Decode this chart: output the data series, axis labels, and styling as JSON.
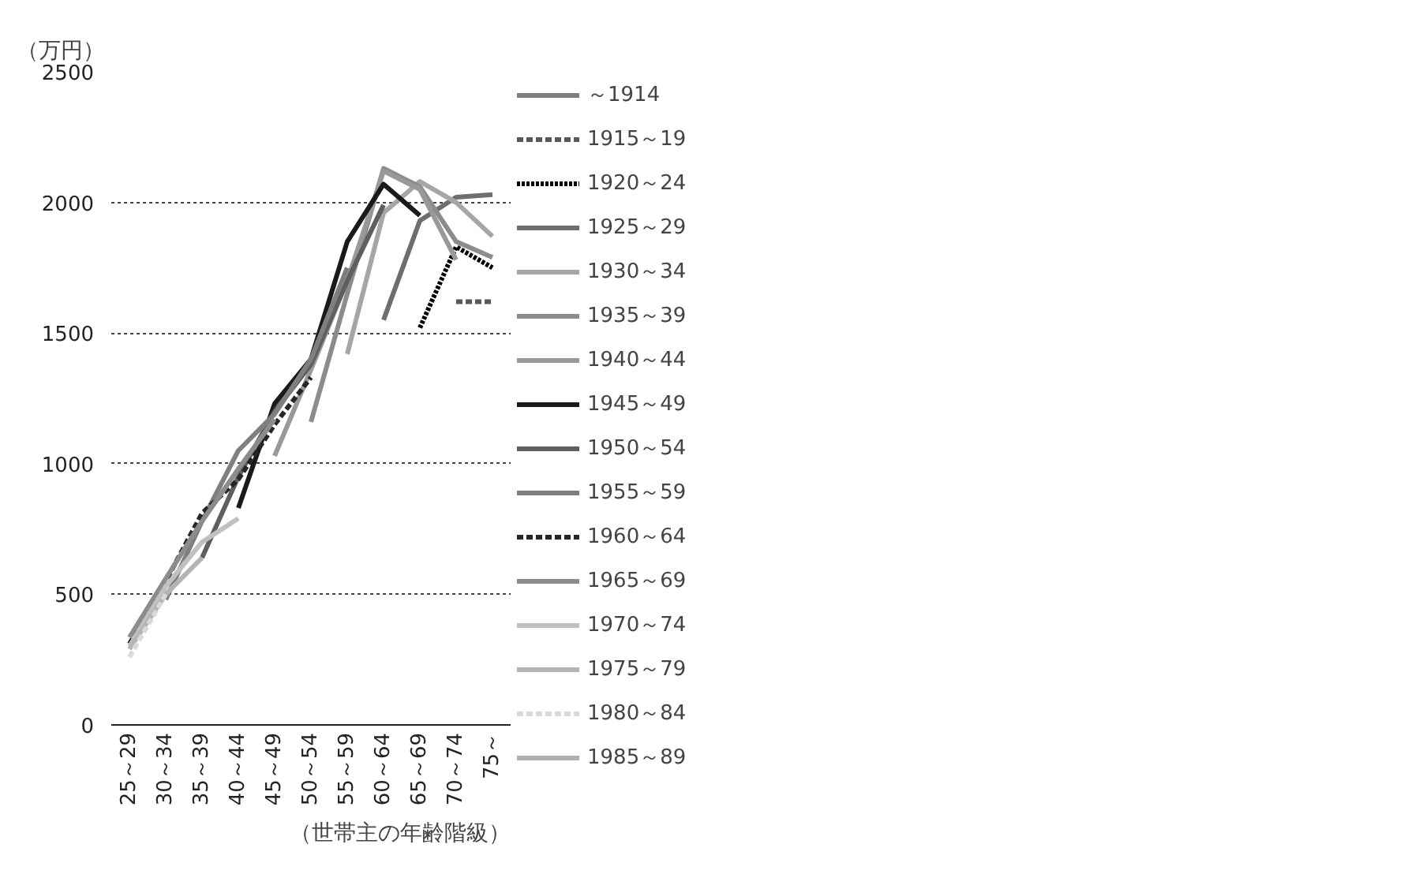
{
  "chart_data": {
    "type": "line",
    "ylabel": "（万円）",
    "xlabel": "（世帯主の年齢階級）",
    "categories": [
      "25～29",
      "30～34",
      "35～39",
      "40～44",
      "45～49",
      "50～54",
      "55～59",
      "60～64",
      "65～69",
      "70～74",
      "75～"
    ],
    "ylim": [
      0,
      2500
    ],
    "yticks": [
      0,
      500,
      1000,
      1500,
      2000,
      2500
    ],
    "grid": "y",
    "legend": "right",
    "series": [
      {
        "name": "～1914",
        "color": "#808080",
        "values": [
          null,
          null,
          null,
          null,
          null,
          null,
          null,
          null,
          null,
          null,
          null
        ]
      },
      {
        "name": "1915～19",
        "color": "#595959",
        "line_style": "dashed",
        "values": [
          null,
          null,
          null,
          null,
          null,
          null,
          null,
          null,
          null,
          1620,
          1620
        ]
      },
      {
        "name": "1920～24",
        "color": "#000000",
        "line_style": "dotted",
        "values": [
          null,
          null,
          null,
          null,
          null,
          null,
          null,
          null,
          1520,
          1830,
          1750
        ]
      },
      {
        "name": "1925～29",
        "color": "#6e6e6e",
        "values": [
          null,
          null,
          null,
          null,
          null,
          null,
          null,
          1550,
          1930,
          2020,
          2030
        ]
      },
      {
        "name": "1930～34",
        "color": "#a6a6a6",
        "values": [
          null,
          null,
          null,
          null,
          null,
          null,
          1420,
          1960,
          2080,
          2000,
          1870
        ]
      },
      {
        "name": "1935～39",
        "color": "#8c8c8c",
        "values": [
          null,
          null,
          null,
          null,
          null,
          1160,
          1650,
          2130,
          2060,
          1850,
          1790
        ]
      },
      {
        "name": "1940～44",
        "color": "#999999",
        "values": [
          null,
          null,
          null,
          null,
          1030,
          1360,
          1700,
          2120,
          2050,
          1780,
          null
        ]
      },
      {
        "name": "1945～49",
        "color": "#1a1a1a",
        "values": [
          null,
          null,
          null,
          830,
          1230,
          1400,
          1850,
          2070,
          1950,
          null,
          null
        ]
      },
      {
        "name": "1950～54",
        "color": "#5f5f5f",
        "values": [
          null,
          null,
          640,
          950,
          1200,
          1380,
          1700,
          1990,
          null,
          null,
          null
        ]
      },
      {
        "name": "1955～59",
        "color": "#7f7f7f",
        "values": [
          null,
          480,
          780,
          1050,
          1190,
          1400,
          1750,
          null,
          null,
          null,
          null
        ]
      },
      {
        "name": "1960～64",
        "color": "#262626",
        "line_style": "dashed",
        "values": [
          310,
          550,
          810,
          940,
          1150,
          1330,
          null,
          null,
          null,
          null,
          null
        ]
      },
      {
        "name": "1965～69",
        "color": "#8c8c8c",
        "values": [
          335,
          560,
          780,
          980,
          1170,
          null,
          null,
          null,
          null,
          null,
          null
        ]
      },
      {
        "name": "1970～74",
        "color": "#c0c0c0",
        "values": [
          300,
          530,
          700,
          790,
          null,
          null,
          null,
          null,
          null,
          null,
          null
        ]
      },
      {
        "name": "1975～79",
        "color": "#b4b4b4",
        "values": [
          290,
          500,
          640,
          null,
          null,
          null,
          null,
          null,
          null,
          null,
          null
        ]
      },
      {
        "name": "1980～84",
        "color": "#d9d9d9",
        "line_style": "dashed",
        "values": [
          260,
          500,
          null,
          null,
          null,
          null,
          null,
          null,
          null,
          null,
          null
        ]
      },
      {
        "name": "1985～89",
        "color": "#b0b0b0",
        "values": [
          null,
          null,
          null,
          null,
          null,
          null,
          null,
          null,
          null,
          null,
          null
        ]
      }
    ]
  }
}
